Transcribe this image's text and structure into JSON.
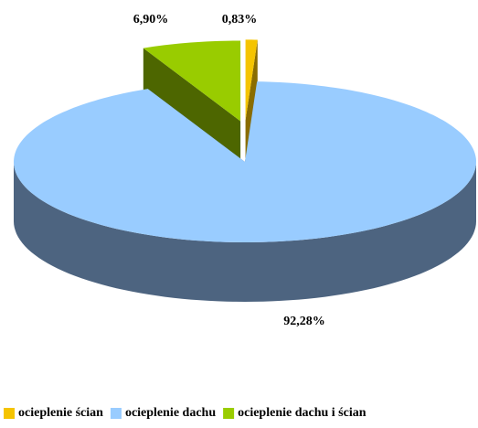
{
  "chart_data": {
    "type": "pie",
    "categories": [
      "ocieplenie ścian",
      "ocieplenie dachu",
      "ocieplenie dachu i ścian"
    ],
    "values": [
      0.83,
      92.28,
      6.9
    ],
    "value_labels": [
      "0,83%",
      "92,28%",
      "6,90%"
    ],
    "colors": [
      "#f5c400",
      "#99ccff",
      "#99cc00"
    ],
    "side_colors": [
      "#8a6d00",
      "#4d6480",
      "#4d6600"
    ],
    "legend": "bottom"
  }
}
